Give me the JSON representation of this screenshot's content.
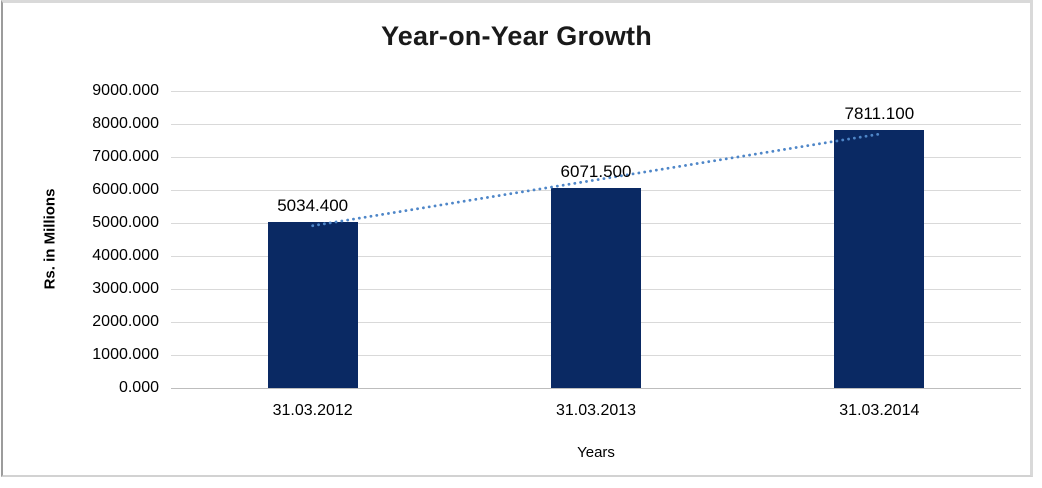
{
  "chart_data": {
    "type": "bar",
    "title": "Year-on-Year Growth",
    "xlabel": "Years",
    "ylabel": "Rs. in Millions",
    "categories": [
      "31.03.2012",
      "31.03.2013",
      "31.03.2014"
    ],
    "values": [
      5034.4,
      6071.5,
      7811.1
    ],
    "data_labels": [
      "5034.400",
      "6071.500",
      "7811.100"
    ],
    "y_ticks": [
      "0.000",
      "1000.000",
      "2000.000",
      "3000.000",
      "4000.000",
      "5000.000",
      "6000.000",
      "7000.000",
      "8000.000",
      "9000.000"
    ],
    "ylim": [
      0,
      9000
    ],
    "grid": true,
    "legend": "none",
    "trendline": {
      "style": "dotted",
      "fit": "linear"
    },
    "colors": {
      "bar": "#0a2963",
      "trendline": "#4e86c8",
      "gridline": "#d9d9d9",
      "axis_line": "#bdbdbd",
      "text": "#000000",
      "title": "#1a1a1a"
    }
  }
}
